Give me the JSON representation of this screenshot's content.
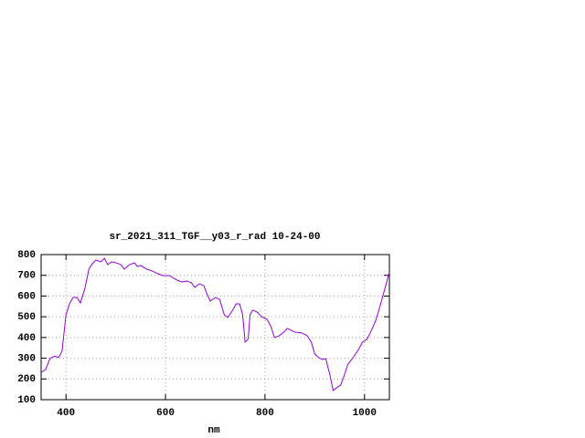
{
  "chart_data": {
    "type": "line",
    "title": "sr_2021_311_TGF__y03_r_rad 10-24-00",
    "x_label": "nm",
    "x": [
      350,
      359,
      368,
      378,
      385,
      392,
      400,
      407,
      414,
      422,
      429,
      438,
      446,
      453,
      460,
      470,
      477,
      484,
      492,
      501,
      510,
      517,
      528,
      538,
      543,
      551,
      562,
      573,
      584,
      595,
      608,
      620,
      632,
      643,
      652,
      659,
      668,
      677,
      683,
      690,
      700,
      709,
      718,
      725,
      735,
      742,
      749,
      755,
      760,
      766,
      770,
      775,
      784,
      793,
      804,
      812,
      819,
      828,
      836,
      845,
      852,
      860,
      874,
      885,
      893,
      900,
      908,
      915,
      922,
      930,
      937,
      944,
      952,
      959,
      966,
      977,
      988,
      996,
      1005,
      1014,
      1022,
      1029,
      1040,
      1050
    ],
    "series": [
      {
        "color": "#9400d3",
        "values": [
          232,
          245,
          300,
          310,
          303,
          334,
          510,
          562,
          593,
          593,
          567,
          637,
          730,
          756,
          774,
          765,
          782,
          752,
          765,
          760,
          752,
          730,
          752,
          760,
          743,
          747,
          730,
          721,
          708,
          699,
          699,
          681,
          668,
          672,
          664,
          642,
          659,
          650,
          611,
          576,
          593,
          584,
          510,
          496,
          532,
          562,
          562,
          510,
          378,
          391,
          510,
          532,
          523,
          501,
          488,
          452,
          400,
          408,
          422,
          444,
          435,
          426,
          422,
          408,
          378,
          320,
          303,
          294,
          298,
          224,
          144,
          158,
          171,
          215,
          268,
          303,
          342,
          378,
          391,
          435,
          479,
          532,
          628,
          716
        ]
      }
    ],
    "xlim": [
      350,
      1050
    ],
    "ylim": [
      100,
      800
    ],
    "xticks": [
      400,
      600,
      800,
      1000
    ],
    "yticks": [
      100,
      200,
      300,
      400,
      500,
      600,
      700,
      800
    ],
    "grid": true
  }
}
